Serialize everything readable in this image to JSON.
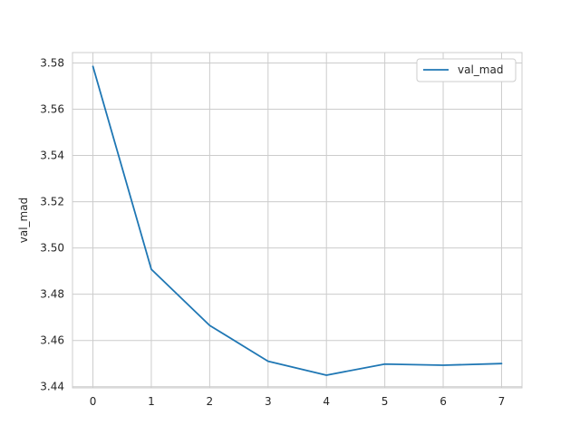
{
  "chart_data": {
    "type": "line",
    "title": "",
    "xlabel": "",
    "ylabel": "val_mad",
    "x": [
      0,
      1,
      2,
      3,
      4,
      5,
      6,
      7
    ],
    "series": [
      {
        "name": "val_mad",
        "values": [
          3.5785,
          3.4908,
          3.4665,
          3.451,
          3.445,
          3.4498,
          3.4493,
          3.45
        ]
      }
    ],
    "xlim": [
      -0.35,
      7.35
    ],
    "ylim": [
      3.4395,
      3.5845
    ],
    "xticks": [
      "0",
      "1",
      "2",
      "3",
      "4",
      "5",
      "6",
      "7"
    ],
    "yticks": [
      "3.44",
      "3.46",
      "3.48",
      "3.50",
      "3.52",
      "3.54",
      "3.56",
      "3.58"
    ],
    "grid": true,
    "legend_position": "top-right",
    "colors": {
      "series": "#1f77b4",
      "grid": "#cccccc",
      "frame": "#cccccc",
      "text": "#262626"
    }
  }
}
